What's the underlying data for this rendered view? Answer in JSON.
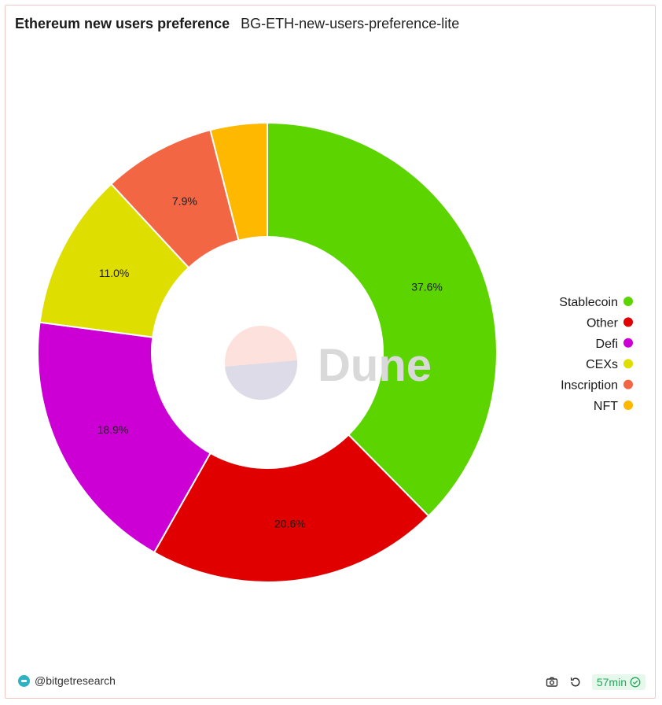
{
  "header": {
    "title": "Ethereum new users preference",
    "subtitle": "BG-ETH-new-users-preference-lite"
  },
  "watermark": "Dune",
  "footer": {
    "handle": "@bitgetresearch",
    "refresh_age": "57min"
  },
  "icons": {
    "camera": "camera-icon",
    "refresh": "refresh-icon",
    "check": "check-circle-icon",
    "avatar": "avatar-icon"
  },
  "chart_data": {
    "type": "pie",
    "donut": true,
    "legend_position": "right",
    "slices": [
      {
        "name": "Stablecoin",
        "value": 37.6,
        "label": "37.6%",
        "color": "#5cd400"
      },
      {
        "name": "Other",
        "value": 20.6,
        "label": "20.6%",
        "color": "#e00000"
      },
      {
        "name": "Defi",
        "value": 18.9,
        "label": "18.9%",
        "color": "#cc00d4"
      },
      {
        "name": "CEXs",
        "value": 11.0,
        "label": "11.0%",
        "color": "#dede00"
      },
      {
        "name": "Inscription",
        "value": 7.9,
        "label": "7.9%",
        "color": "#f26644"
      },
      {
        "name": "NFT",
        "value": 4.0,
        "label": "",
        "color": "#ffb800"
      }
    ]
  }
}
